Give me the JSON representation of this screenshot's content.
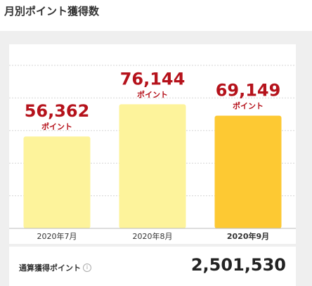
{
  "header": {
    "title": "月別ポイント獲得数"
  },
  "chart_data": {
    "type": "bar",
    "categories": [
      "2020年7月",
      "2020年8月",
      "2020年9月"
    ],
    "values": [
      56362,
      76144,
      69149
    ],
    "value_labels": [
      "56,362",
      "76,144",
      "69,149"
    ],
    "unit_label": "ポイント",
    "highlighted_index": 2,
    "ylim": [
      0,
      100000
    ],
    "grid": true,
    "colors": {
      "bar": "#fdf39b",
      "bar_highlight": "#fdc933",
      "value_text": "#b5121b",
      "grid": "#d5d5d5"
    }
  },
  "total": {
    "label": "通算獲得ポイント",
    "info_icon": "info-icon",
    "value": "2,501,530"
  }
}
